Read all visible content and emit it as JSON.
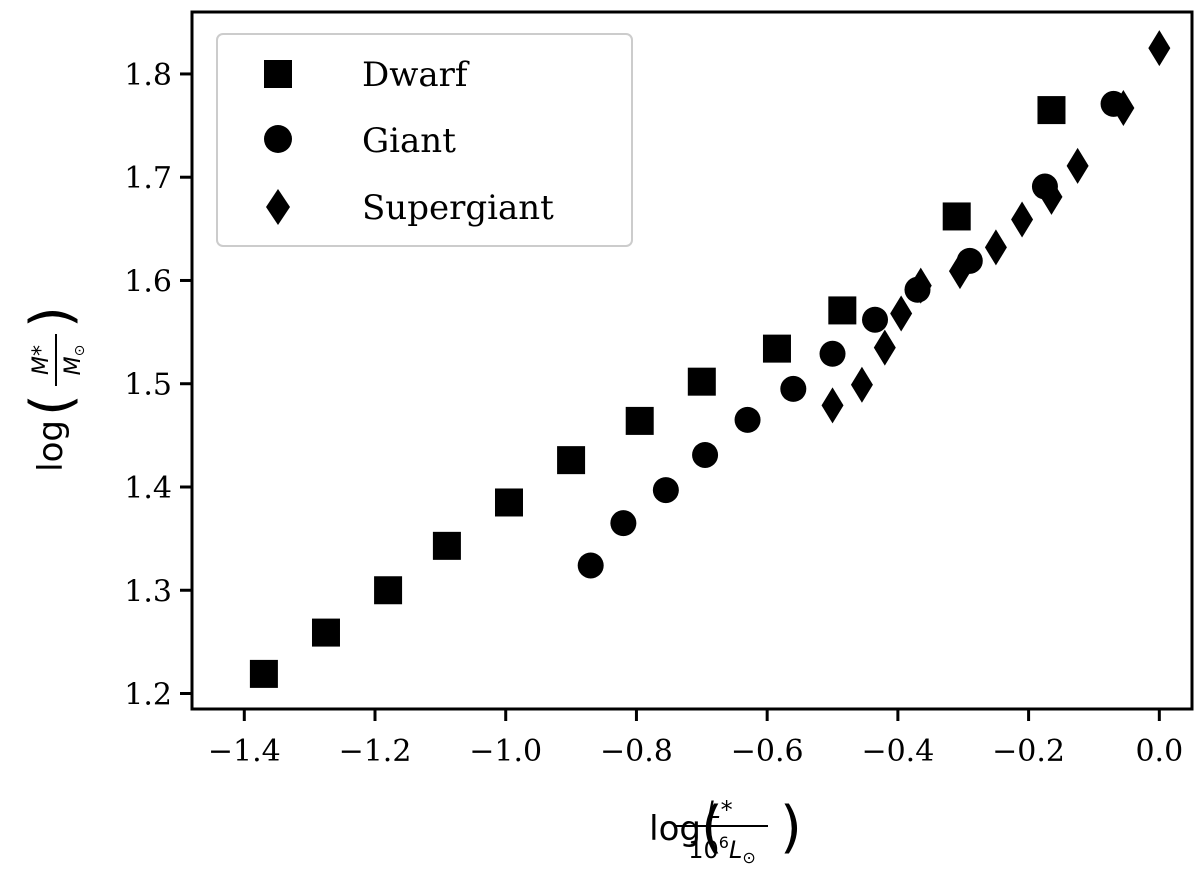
{
  "chart_data": {
    "type": "scatter",
    "title": "",
    "xlabel": "log(L*/10^6 L⊙)",
    "ylabel": "log(M*/M⊙)",
    "xlim": [
      -1.48,
      0.05
    ],
    "ylim": [
      1.185,
      1.86
    ],
    "xticks": [
      -1.4,
      -1.2,
      -1.0,
      -0.8,
      -0.6,
      -0.4,
      -0.2,
      0.0
    ],
    "xtick_labels": [
      "−1.4",
      "−1.2",
      "−1.0",
      "−0.8",
      "−0.6",
      "−0.4",
      "−0.2",
      "0.0"
    ],
    "yticks": [
      1.2,
      1.3,
      1.4,
      1.5,
      1.6,
      1.7,
      1.8
    ],
    "ytick_labels": [
      "1.2",
      "1.3",
      "1.4",
      "1.5",
      "1.6",
      "1.7",
      "1.8"
    ],
    "grid": false,
    "legend_position": "top-left",
    "series": [
      {
        "name": "Dwarf",
        "marker": "square",
        "color": "#000000",
        "points": [
          [
            -1.37,
            1.219
          ],
          [
            -1.275,
            1.259
          ],
          [
            -1.18,
            1.3
          ],
          [
            -1.09,
            1.343
          ],
          [
            -0.995,
            1.385
          ],
          [
            -0.9,
            1.426
          ],
          [
            -0.795,
            1.464
          ],
          [
            -0.7,
            1.502
          ],
          [
            -0.585,
            1.534
          ],
          [
            -0.485,
            1.571
          ],
          [
            -0.31,
            1.662
          ],
          [
            -0.165,
            1.765
          ]
        ]
      },
      {
        "name": "Giant",
        "marker": "circle",
        "color": "#000000",
        "points": [
          [
            -0.87,
            1.324
          ],
          [
            -0.82,
            1.365
          ],
          [
            -0.755,
            1.397
          ],
          [
            -0.695,
            1.431
          ],
          [
            -0.63,
            1.465
          ],
          [
            -0.56,
            1.495
          ],
          [
            -0.5,
            1.529
          ],
          [
            -0.435,
            1.562
          ],
          [
            -0.37,
            1.591
          ],
          [
            -0.29,
            1.619
          ],
          [
            -0.175,
            1.691
          ],
          [
            -0.07,
            1.771
          ]
        ]
      },
      {
        "name": "Supergiant",
        "marker": "diamond",
        "color": "#000000",
        "points": [
          [
            -0.5,
            1.479
          ],
          [
            -0.455,
            1.499
          ],
          [
            -0.42,
            1.535
          ],
          [
            -0.395,
            1.568
          ],
          [
            -0.365,
            1.595
          ],
          [
            -0.305,
            1.609
          ],
          [
            -0.25,
            1.632
          ],
          [
            -0.21,
            1.659
          ],
          [
            -0.165,
            1.681
          ],
          [
            -0.125,
            1.711
          ],
          [
            -0.055,
            1.767
          ],
          [
            0.0,
            1.825
          ]
        ]
      }
    ]
  }
}
